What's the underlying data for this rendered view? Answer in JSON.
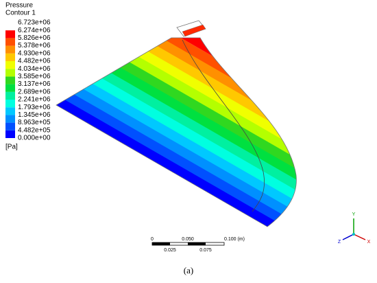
{
  "legend": {
    "title": "Pressure",
    "subtitle": "Contour 1",
    "labels": [
      "6.723e+06",
      "6.274e+06",
      "5.826e+06",
      "5.378e+06",
      "4.930e+06",
      "4.482e+06",
      "4.034e+06",
      "3.585e+06",
      "3.137e+06",
      "2.689e+06",
      "2.241e+06",
      "1.793e+06",
      "1.345e+06",
      "8.963e+05",
      "4.482e+05",
      "0.000e+00"
    ],
    "unit": "[Pa]"
  },
  "scale_bar": {
    "top_labels": [
      "0",
      "0.050",
      "0.100 (m)"
    ],
    "bottom_labels": [
      "0.025",
      "0.075"
    ]
  },
  "axes": {
    "x": "X",
    "y": "Y",
    "z": "Z"
  },
  "caption": "(a)"
}
